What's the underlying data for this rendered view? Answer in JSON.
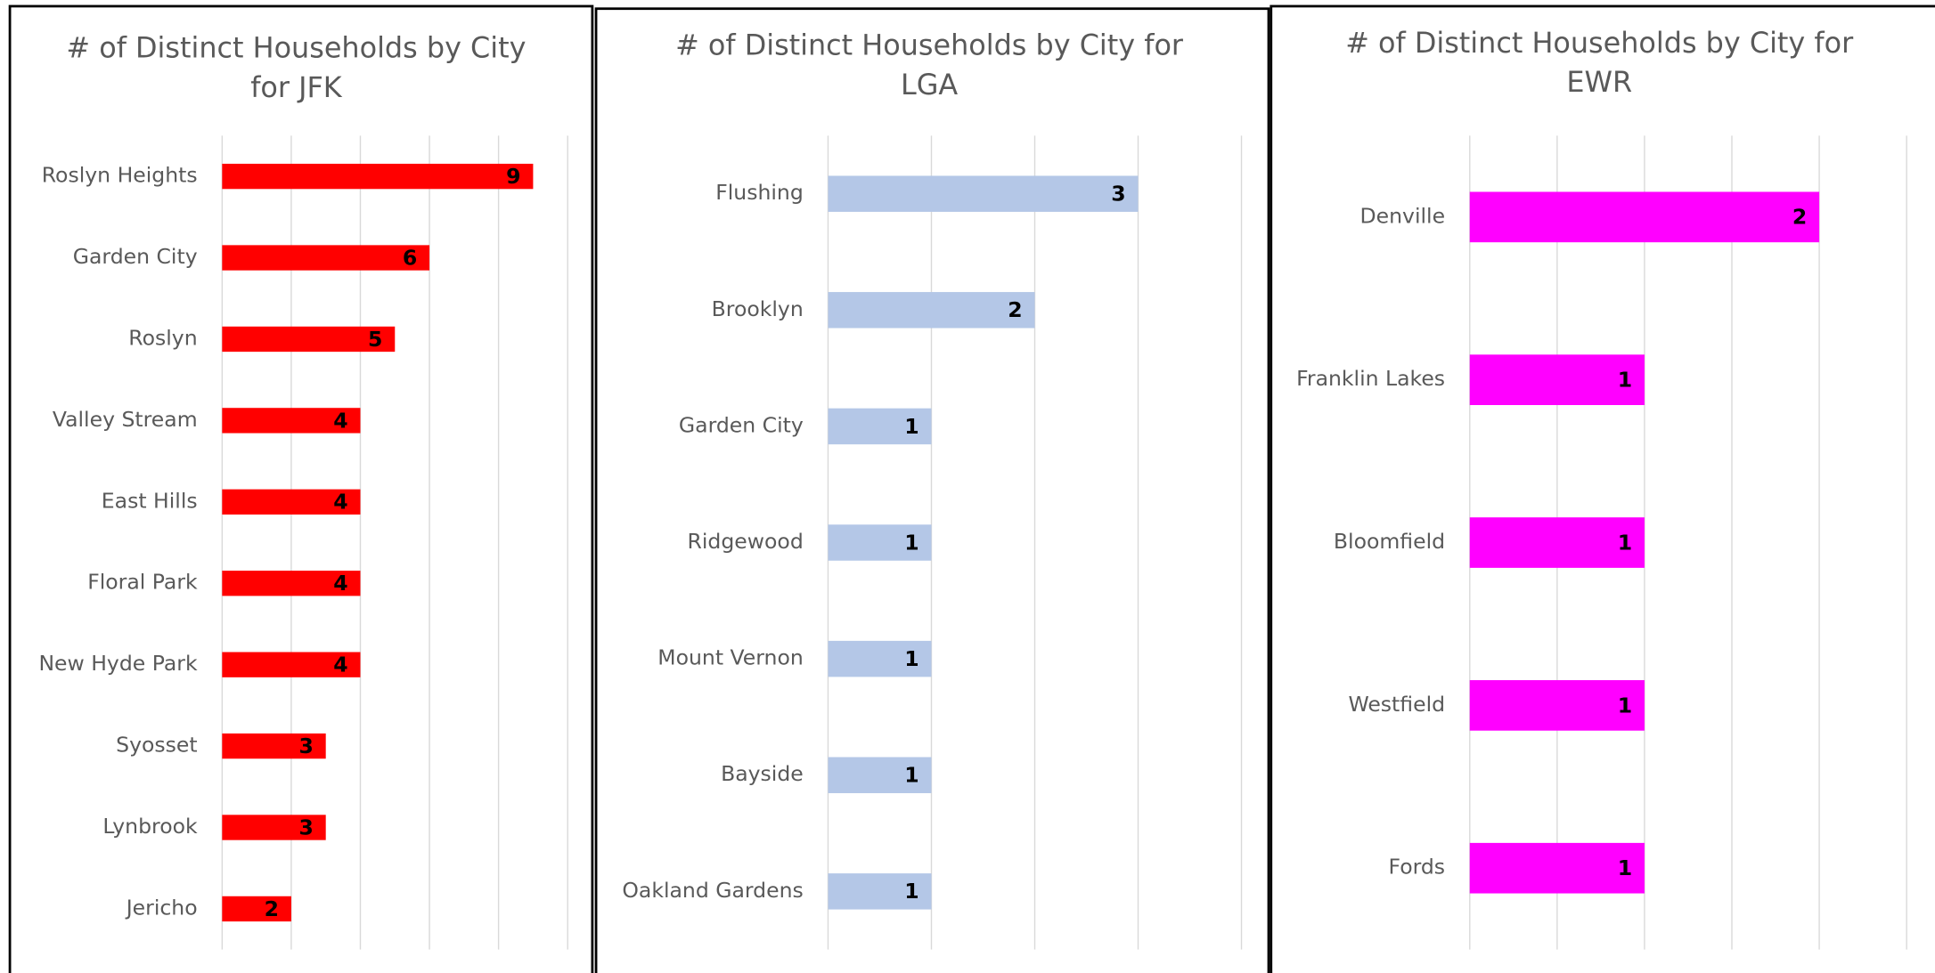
{
  "chart_data": [
    {
      "type": "bar",
      "title": [
        "# of Distinct Households by City",
        "for JFK"
      ],
      "categories": [
        "Roslyn Heights",
        "Garden City",
        "Roslyn",
        "Valley Stream",
        "East Hills",
        "Floral Park",
        "New Hyde Park",
        "Syosset",
        "Lynbrook",
        "Jericho"
      ],
      "values": [
        9,
        6,
        5,
        4,
        4,
        4,
        4,
        3,
        3,
        2
      ],
      "color": "#ff0000",
      "xlim": [
        0,
        10
      ],
      "xticks": [
        0,
        2,
        4,
        6,
        8,
        10
      ],
      "grid": true
    },
    {
      "type": "bar",
      "title": [
        "# of Distinct Households by City for",
        "LGA"
      ],
      "categories": [
        "Flushing",
        "Brooklyn",
        "Garden City",
        "Ridgewood",
        "Mount Vernon",
        "Bayside",
        "Oakland Gardens"
      ],
      "values": [
        3,
        2,
        1,
        1,
        1,
        1,
        1
      ],
      "color": "#b4c7e7",
      "xlim": [
        0,
        4
      ],
      "xticks": [
        0,
        1,
        2,
        3,
        4
      ],
      "grid": true
    },
    {
      "type": "bar",
      "title": [
        "# of Distinct Households by City for",
        "EWR"
      ],
      "categories": [
        "Denville",
        "Franklin Lakes",
        "Bloomfield",
        "Westfield",
        "Fords"
      ],
      "values": [
        2,
        1,
        1,
        1,
        1
      ],
      "color": "#ff00ff",
      "xlim": [
        0,
        2.5
      ],
      "xticks": [
        0,
        0.5,
        1,
        1.5,
        2,
        2.5
      ],
      "grid": true
    }
  ]
}
